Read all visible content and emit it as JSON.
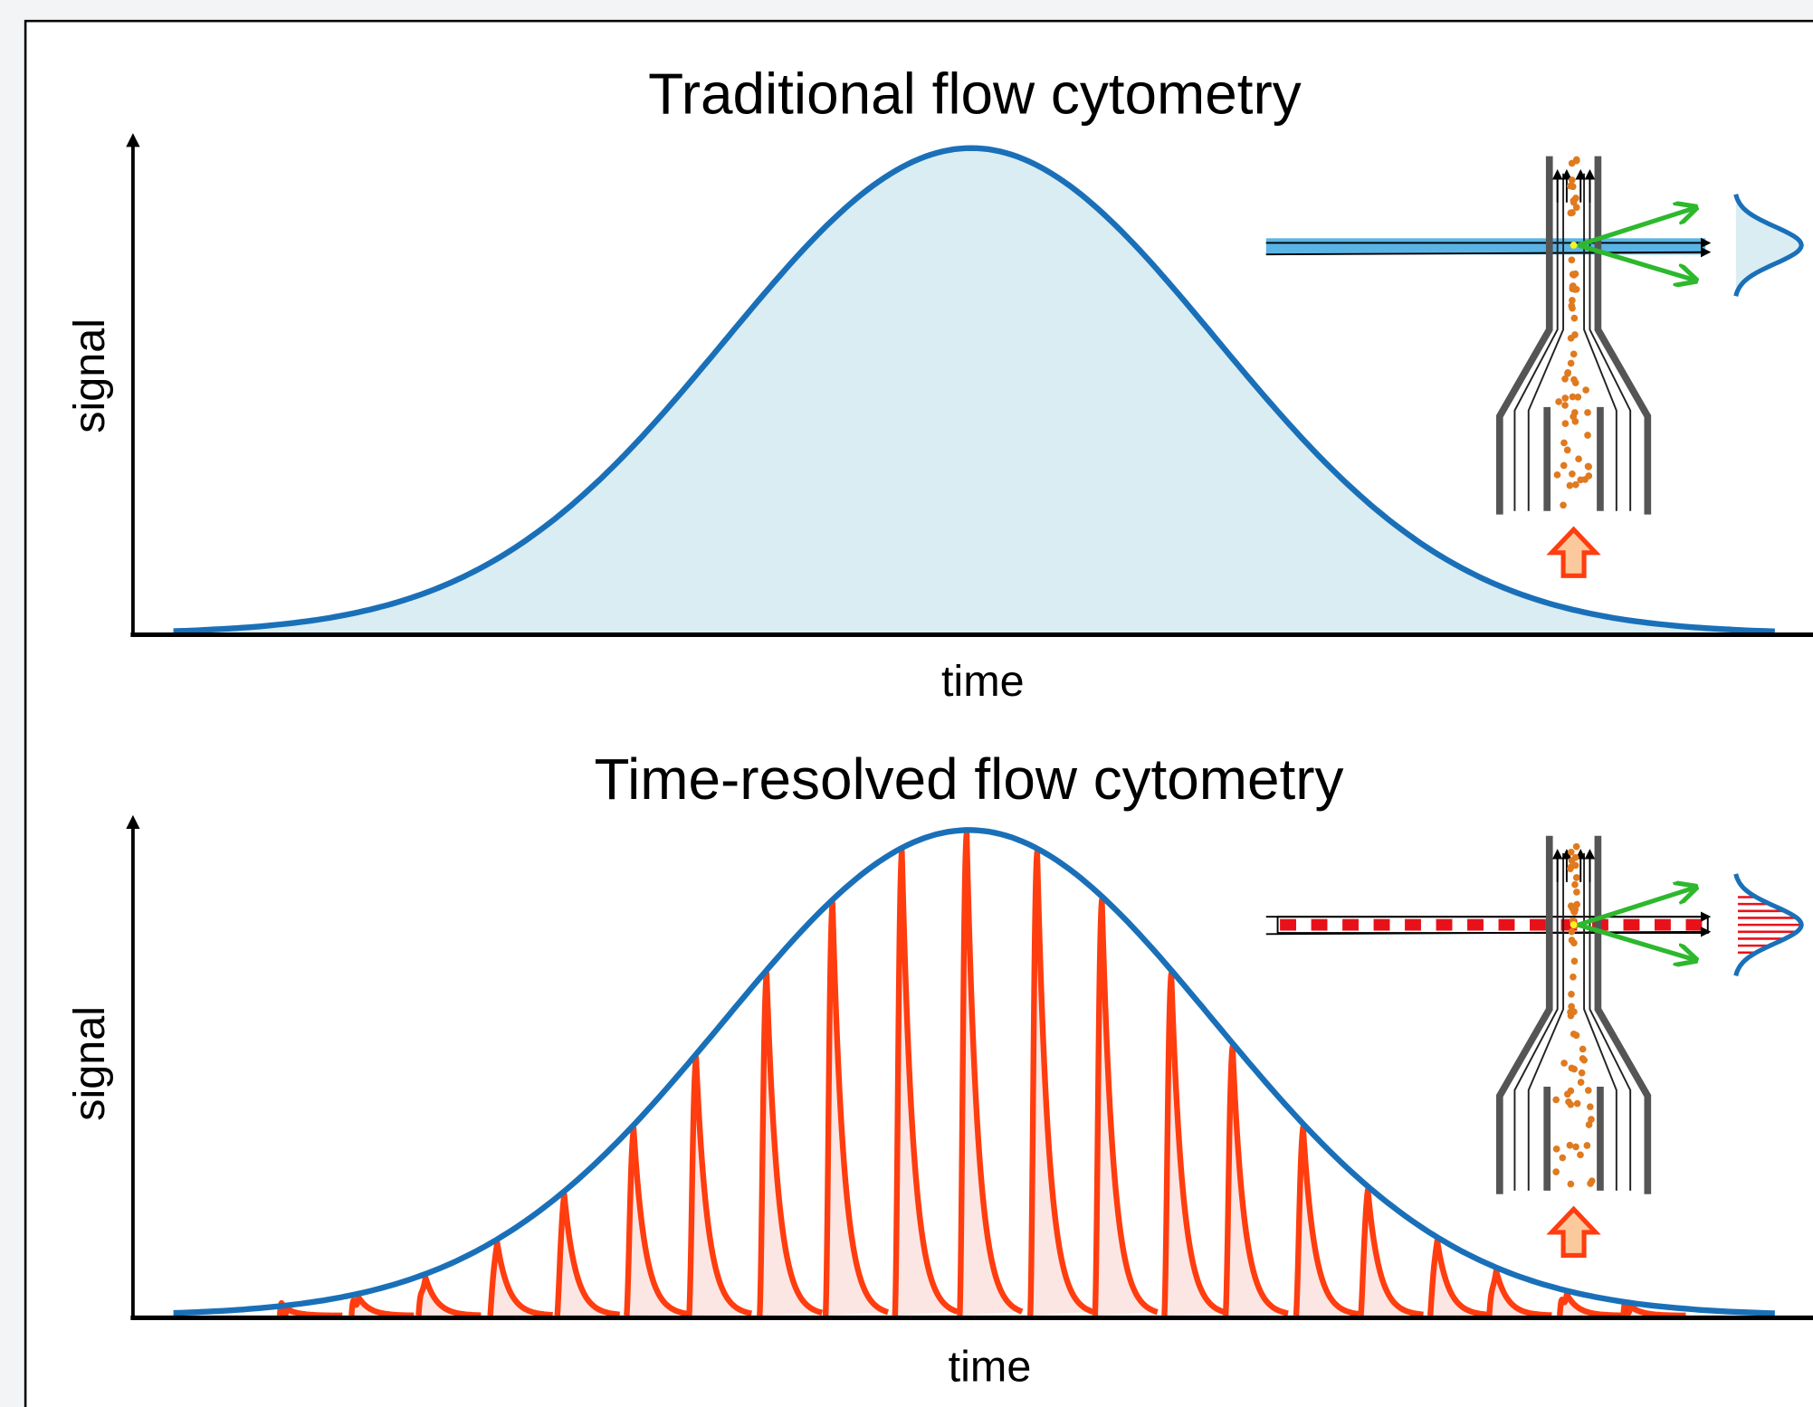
{
  "panels": [
    {
      "title": "Traditional flow cytometry",
      "y_label": "signal",
      "x_label": "time"
    },
    {
      "title": "Time-resolved flow cytometry",
      "y_label": "signal",
      "x_label": "time"
    }
  ]
}
